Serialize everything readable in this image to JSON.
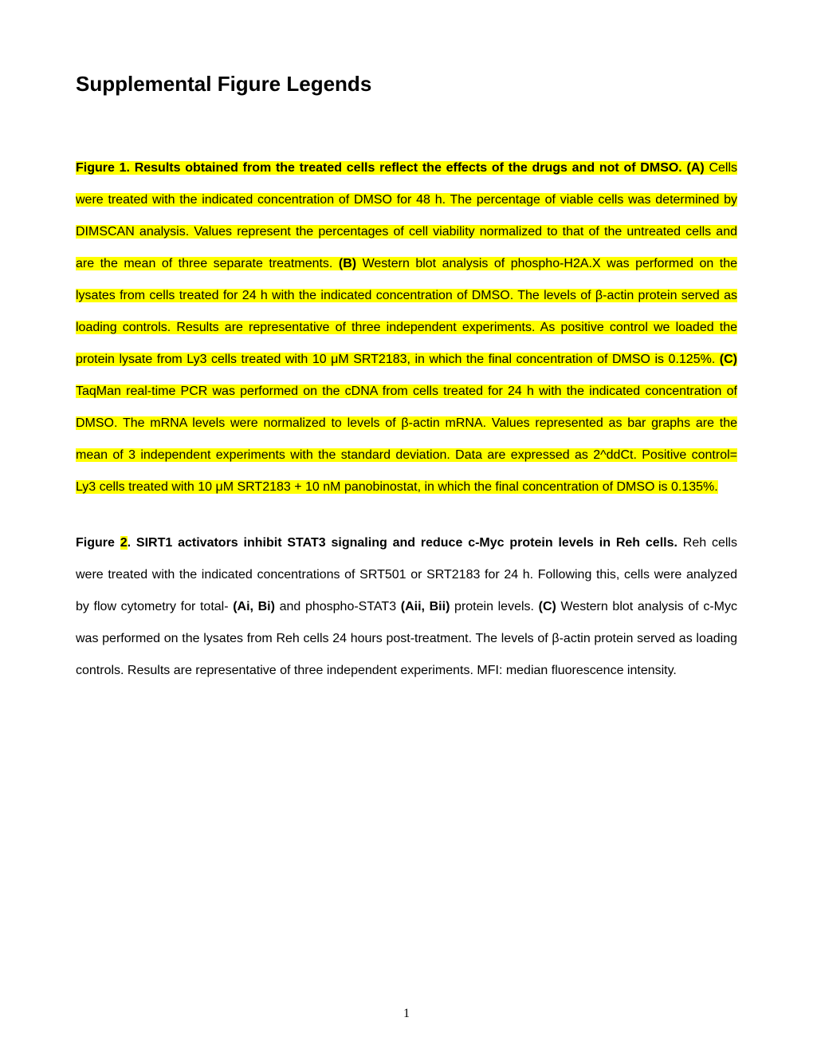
{
  "title": "Supplemental Figure Legends",
  "para1": {
    "s1_bold": "Figure 1. Results obtained from the treated cells reflect the effects of the drugs and not of DMSO. (A) ",
    "s2": "Cells were treated with the indicated concentration of DMSO for 48 h. The percentage of viable cells was determined by DIMSCAN analysis. Values represent the percentages of cell viability normalized to that of the untreated cells and are the mean of three separate treatments. ",
    "s3_bold": "(B) ",
    "s4": "Western blot analysis of phospho-H2A.X was performed on the lysates from cells treated for 24 h with the indicated concentration of DMSO. The levels of β-actin protein served as loading controls. Results are representative of three independent experiments. As positive control we loaded the protein lysate from Ly3 cells treated with 10 μM SRT2183, in which the final concentration of DMSO is 0.125%. ",
    "s5_bold": "(C) ",
    "s6": "TaqMan real-time PCR was performed on the cDNA from cells treated for 24 h with the indicated concentration of DMSO. The mRNA levels were normalized to levels of β-actin mRNA. Values represented as bar graphs are the mean of 3 independent experiments with the standard deviation. Data are expressed as 2^ddCt. Positive control= Ly3 cells treated with 10 μM SRT2183 + 10 nM panobinostat, in which the final concentration of DMSO is 0.135%."
  },
  "para2": {
    "s1": "Figure ",
    "s1_hl": "2",
    "s2_bold": ". SIRT1 activators inhibit STAT3 signaling and reduce c-Myc protein levels in Reh cells. ",
    "s3": "Reh cells were treated with the indicated concentrations of SRT501 or SRT2183 for 24 h. Following this, cells were analyzed by flow cytometry for total- ",
    "s4_bold": "(Ai, Bi) ",
    "s5": "and phospho-STAT3 ",
    "s6_bold": "(Aii, Bii) ",
    "s7": "protein levels. ",
    "s8_bold": "(C) ",
    "s9": "Western blot analysis of c-Myc was performed on the lysates from Reh cells 24 hours post-treatment. The levels of β-actin protein served as loading controls. Results are representative of three independent experiments. MFI: median fluorescence intensity."
  },
  "page_number": "1",
  "colors": {
    "highlight": "#ffff00",
    "text": "#000000",
    "background": "#ffffff"
  },
  "typography": {
    "title_fontsize": 26,
    "body_fontsize": 16,
    "line_height": 2.5,
    "font_family": "Arial"
  }
}
